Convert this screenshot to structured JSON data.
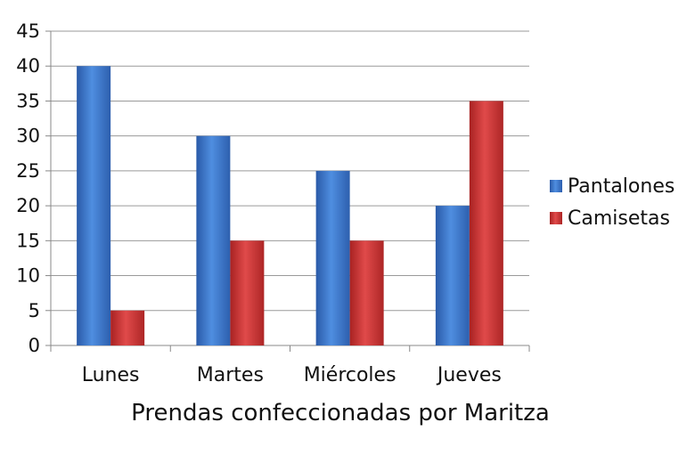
{
  "chart_data": {
    "type": "bar",
    "title": "",
    "xlabel": "Prendas confeccionadas por Maritza",
    "ylabel": "",
    "categories": [
      "Lunes",
      "Martes",
      "Miércoles",
      "Jueves"
    ],
    "series": [
      {
        "name": "Pantalones",
        "values": [
          40,
          30,
          25,
          20
        ],
        "color": "#3a72c4"
      },
      {
        "name": "Camisetas",
        "values": [
          5,
          15,
          15,
          35
        ],
        "color": "#cc3333"
      }
    ],
    "ylim": [
      0,
      45
    ],
    "yticks": [
      "0",
      "5",
      "10",
      "15",
      "20",
      "25",
      "30",
      "35",
      "40",
      "45"
    ],
    "grid": true,
    "legend_position": "right"
  }
}
